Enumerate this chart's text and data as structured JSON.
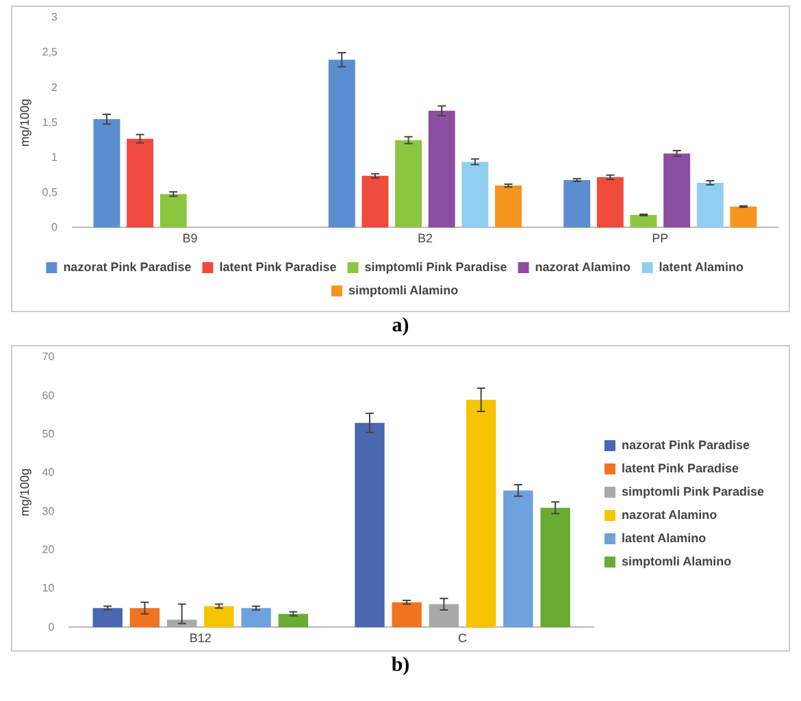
{
  "chart_data": [
    {
      "type": "bar",
      "ylabel": "mg/100g",
      "categories": [
        "B9",
        "B2",
        "PP"
      ],
      "ylim": [
        0,
        3
      ],
      "yticks": [
        0,
        {
          "value": 0.5,
          "label": "0,5"
        },
        1,
        {
          "value": 1.5,
          "label": "1,5"
        },
        2,
        {
          "value": 2.5,
          "label": "2,5"
        },
        3
      ],
      "grid": false,
      "legend": "bottom",
      "annotations": [
        "a)"
      ],
      "series": [
        {
          "name": "nazorat Pink Paradise",
          "color": "#5b8ed0",
          "values": [
            1.55,
            2.4,
            0.68
          ],
          "errors": [
            0.07,
            0.1,
            0.02
          ]
        },
        {
          "name": "latent Pink Paradise",
          "color": "#f04a3c",
          "values": [
            1.27,
            0.74,
            0.72
          ],
          "errors": [
            0.06,
            0.03,
            0.03
          ]
        },
        {
          "name": "simptomli Pink Paradise",
          "color": "#8cc63f",
          "values": [
            0.48,
            1.25,
            0.18
          ],
          "errors": [
            0.03,
            0.05,
            0.01
          ]
        },
        {
          "name": "nazorat Alamino",
          "color": "#8b4ea0",
          "values": [
            null,
            1.67,
            1.06
          ],
          "errors": [
            null,
            0.07,
            0.04
          ]
        },
        {
          "name": "latent Alamino",
          "color": "#8fd0f0",
          "values": [
            null,
            0.94,
            0.64
          ],
          "errors": [
            null,
            0.04,
            0.03
          ]
        },
        {
          "name": "simptomli Alamino",
          "color": "#f5951e",
          "values": [
            null,
            0.6,
            0.3
          ],
          "errors": [
            null,
            0.02,
            0.01
          ]
        }
      ]
    },
    {
      "type": "bar",
      "ylabel": "mg/100g",
      "categories": [
        "B12",
        "C"
      ],
      "ylim": [
        0,
        70
      ],
      "yticks": [
        0,
        10,
        20,
        30,
        40,
        50,
        60,
        70
      ],
      "grid": false,
      "legend": "right",
      "annotations": [
        "b)"
      ],
      "series": [
        {
          "name": "nazorat Pink Paradise",
          "color": "#4a67b0",
          "values": [
            5,
            53
          ],
          "errors": [
            0.5,
            2.5
          ]
        },
        {
          "name": "latent Pink Paradise",
          "color": "#f0731f",
          "values": [
            5,
            6.5
          ],
          "errors": [
            1.5,
            0.5
          ]
        },
        {
          "name": "simptomli Pink Paradise",
          "color": "#a9a9a9",
          "values": [
            2,
            6
          ],
          "errors": [
            [
              1,
              6
            ],
            1.5
          ]
        },
        {
          "name": "nazorat Alamino",
          "color": "#f7c400",
          "values": [
            5.5,
            59
          ],
          "errors": [
            0.5,
            3
          ]
        },
        {
          "name": "latent Alamino",
          "color": "#6fa1dc",
          "values": [
            5,
            35.5
          ],
          "errors": [
            0.5,
            1.5
          ]
        },
        {
          "name": "simptomli Alamino",
          "color": "#6aab34",
          "values": [
            3.5,
            31
          ],
          "errors": [
            0.5,
            1.5
          ]
        }
      ]
    }
  ]
}
